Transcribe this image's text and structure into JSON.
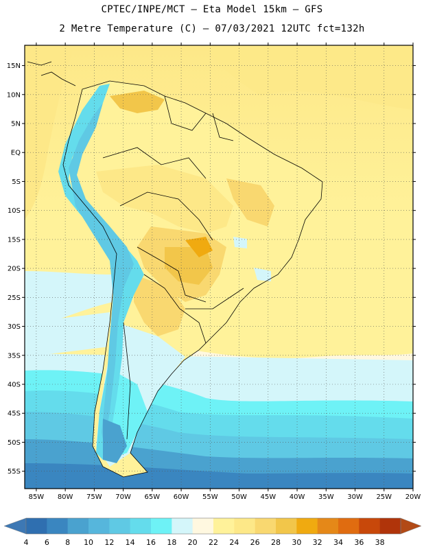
{
  "header": {
    "line1": "CPTEC/INPE/MCT –  Eta Model 15km – GFS",
    "line2": "2 Metre Temperature (C) – 07/03/2021 12UTC fct=132h"
  },
  "axes": {
    "lat_labels": [
      "15N",
      "10N",
      "5N",
      "EQ",
      "5S",
      "10S",
      "15S",
      "20S",
      "25S",
      "30S",
      "35S",
      "40S",
      "45S",
      "50S",
      "55S"
    ],
    "lon_labels": [
      "85W",
      "80W",
      "75W",
      "70W",
      "65W",
      "60W",
      "55W",
      "50W",
      "45W",
      "40W",
      "35W",
      "30W",
      "25W",
      "20W"
    ]
  },
  "colorbar": {
    "values": [
      "4",
      "6",
      "8",
      "10",
      "12",
      "14",
      "16",
      "18",
      "20",
      "22",
      "24",
      "26",
      "28",
      "30",
      "32",
      "34",
      "36",
      "38"
    ],
    "colors": [
      "#2f6fb0",
      "#3a86c0",
      "#4aa2cf",
      "#56b6dc",
      "#5fc9e4",
      "#64dcec",
      "#6ef2f6",
      "#d4f6fa",
      "#fff8e0",
      "#fff29a",
      "#fde888",
      "#f9d870",
      "#f2c64a",
      "#f0aa10",
      "#e58818",
      "#e06c10",
      "#c8480a",
      "#b0340a"
    ],
    "low_arrow": "#3d78b4",
    "high_arrow": "#b24a16"
  }
}
